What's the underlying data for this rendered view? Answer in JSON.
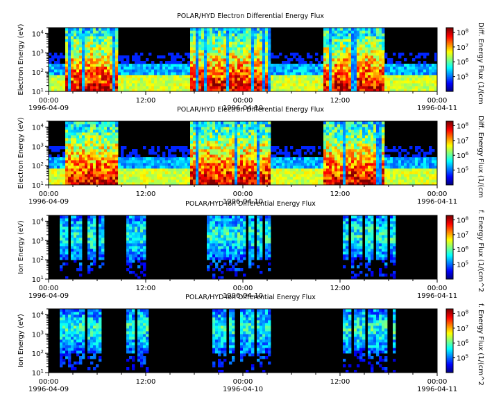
{
  "chart_data": [
    {
      "type": "heatmap",
      "title": "POLAR/HYD  Electron Differential Energy Flux",
      "ylabel": "Electron Energy (eV)",
      "yscale": "log",
      "ylim": [
        10,
        20000
      ],
      "yticks": [
        "10^1",
        "10^2",
        "10^3",
        "10^4"
      ],
      "xlim": [
        "1996-04-09 00:00",
        "1996-04-11 00:00"
      ],
      "xticks": [
        "00:00|1996-04-09",
        "12:00",
        "00:00|1996-04-10",
        "12:00",
        "00:00|1996-04-11"
      ],
      "colorbar": {
        "label": "Diff. Energy Flux (1/(cm",
        "scale": "log",
        "ticks": [
          "10^5",
          "10^6",
          "10^7",
          "10^8"
        ],
        "range": [
          10000,
          200000000
        ]
      },
      "bursts_hours": [
        [
          2.0,
          8.5
        ],
        [
          17.5,
          27.5
        ],
        [
          34.0,
          41.5
        ]
      ]
    },
    {
      "type": "heatmap",
      "title": "POLAR/HYD  Electron Differential Energy Flux",
      "ylabel": "Electron Energy (eV)",
      "yscale": "log",
      "ylim": [
        10,
        20000
      ],
      "yticks": [
        "10^1",
        "10^2",
        "10^3",
        "10^4"
      ],
      "xlim": [
        "1996-04-09 00:00",
        "1996-04-11 00:00"
      ],
      "xticks": [
        "00:00|1996-04-09",
        "12:00",
        "00:00|1996-04-10",
        "12:00",
        "00:00|1996-04-11"
      ],
      "colorbar": {
        "label": "Diff. Energy Flux (1/(cm",
        "scale": "log",
        "ticks": [
          "10^5",
          "10^6",
          "10^7",
          "10^8"
        ],
        "range": [
          10000,
          200000000
        ]
      },
      "bursts_hours": [
        [
          2.0,
          8.5
        ],
        [
          17.5,
          27.5
        ],
        [
          34.0,
          41.5
        ]
      ]
    },
    {
      "type": "heatmap",
      "title": "POLAR/HYD  Ion Differential Energy Flux",
      "ylabel": "Ion Energy (eV)",
      "yscale": "log",
      "ylim": [
        10,
        20000
      ],
      "yticks": [
        "10^1",
        "10^2",
        "10^3",
        "10^4"
      ],
      "xlim": [
        "1996-04-09 00:00",
        "1996-04-11 00:00"
      ],
      "xticks": [
        "00:00|1996-04-09",
        "12:00",
        "00:00|1996-04-10",
        "12:00",
        "00:00|1996-04-11"
      ],
      "colorbar": {
        "label": "f. Energy Flux (1/(cm^2",
        "scale": "log",
        "ticks": [
          "10^5",
          "10^6",
          "10^7",
          "10^8"
        ],
        "range": [
          10000,
          200000000
        ]
      },
      "bursts_hours": [
        [
          1.5,
          7.0
        ],
        [
          9.5,
          12.5
        ],
        [
          19.5,
          27.5
        ],
        [
          36.5,
          43.0
        ]
      ]
    },
    {
      "type": "heatmap",
      "title": "POLAR/HYD  Ion Differential Energy Flux",
      "ylabel": "Ion Energy (eV)",
      "yscale": "log",
      "ylim": [
        10,
        20000
      ],
      "yticks": [
        "10^1",
        "10^2",
        "10^3",
        "10^4"
      ],
      "xlim": [
        "1996-04-09 00:00",
        "1996-04-11 00:00"
      ],
      "xticks": [
        "00:00|1996-04-09",
        "12:00",
        "00:00|1996-04-10",
        "12:00",
        "00:00|1996-04-11"
      ],
      "colorbar": {
        "label": "f. Energy Flux (1/(cm^2",
        "scale": "log",
        "ticks": [
          "10^5",
          "10^6",
          "10^7",
          "10^8"
        ],
        "range": [
          10000,
          200000000
        ]
      },
      "bursts_hours": [
        [
          1.5,
          7.0
        ],
        [
          9.5,
          12.5
        ],
        [
          19.5,
          27.5
        ],
        [
          36.5,
          43.0
        ]
      ]
    }
  ]
}
